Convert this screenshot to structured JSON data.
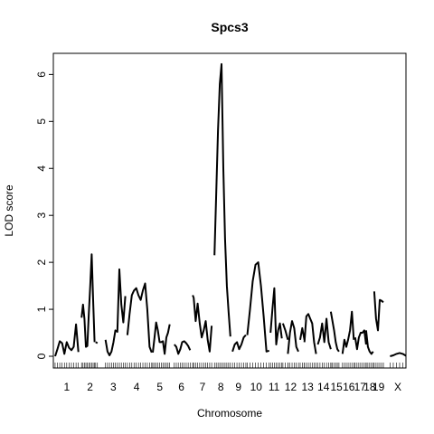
{
  "chart_data": {
    "type": "line",
    "title": "Spcs3",
    "xlabel": "Chromosome",
    "ylabel": "LOD score",
    "ylim": [
      -0.25,
      6.45
    ],
    "yticks": [
      0,
      1,
      2,
      3,
      4,
      5,
      6
    ],
    "xlim": [
      0,
      1.0
    ],
    "grid": false,
    "chromosomes": [
      {
        "label": "1",
        "range": [
          0.005,
          0.071
        ],
        "lod": [
          0.0,
          0.15,
          0.32,
          0.28,
          0.05,
          0.3,
          0.18,
          0.13,
          0.2,
          0.68,
          0.09
        ]
      },
      {
        "label": "",
        "range": [
          0.08,
          0.117
        ],
        "lod": [
          0.82,
          1.1,
          0.8,
          0.2,
          0.22,
          0.9,
          1.5,
          2.17,
          1.2,
          0.3
        ]
      },
      {
        "label": "2",
        "range": [
          0.12,
          0.125
        ],
        "lod": [
          0.3,
          0.28
        ]
      },
      {
        "label": "3",
        "range": [
          0.148,
          0.204
        ],
        "lod": [
          0.35,
          0.1,
          0.02,
          0.1,
          0.3,
          0.55,
          0.52,
          1.85,
          1.1,
          0.72,
          1.28
        ]
      },
      {
        "label": "4",
        "range": [
          0.21,
          0.279
        ],
        "lod": [
          0.45,
          0.9,
          1.3,
          1.4,
          1.45,
          1.3,
          1.2,
          1.4,
          1.55,
          1.0,
          0.2,
          0.08
        ]
      },
      {
        "label": "5",
        "range": [
          0.282,
          0.33
        ],
        "lod": [
          0.08,
          0.4,
          0.72,
          0.55,
          0.3,
          0.3,
          0.32,
          0.05,
          0.4,
          0.5,
          0.68
        ]
      },
      {
        "label": "6",
        "range": [
          0.343,
          0.388
        ],
        "lod": [
          0.25,
          0.2,
          0.05,
          0.15,
          0.3,
          0.32,
          0.28,
          0.22,
          0.13
        ]
      },
      {
        "label": "",
        "range": [
          0.395,
          0.398
        ],
        "lod": [
          1.3,
          1.25
        ]
      },
      {
        "label": "7",
        "range": [
          0.398,
          0.449
        ],
        "lod": [
          1.25,
          0.75,
          1.12,
          0.7,
          0.4,
          0.55,
          0.75,
          0.35,
          0.1,
          0.65
        ]
      },
      {
        "label": "8",
        "range": [
          0.457,
          0.502
        ],
        "lod": [
          2.15,
          3.5,
          4.8,
          5.8,
          6.22,
          4.0,
          2.5,
          1.5,
          0.95,
          0.42
        ]
      },
      {
        "label": "9",
        "range": [
          0.508,
          0.546
        ],
        "lod": [
          0.1,
          0.25,
          0.3,
          0.15,
          0.25,
          0.4,
          0.45
        ]
      },
      {
        "label": "10",
        "range": [
          0.55,
          0.612
        ],
        "lod": [
          0.45,
          1.0,
          1.6,
          1.95,
          2.0,
          1.5,
          0.85,
          0.1,
          0.12
        ]
      },
      {
        "label": "11",
        "range": [
          0.616,
          0.648
        ],
        "lod": [
          0.5,
          1.0,
          1.45,
          0.25,
          0.55,
          0.7,
          0.38
        ]
      },
      {
        "label": "",
        "range": [
          0.651,
          0.665
        ],
        "lod": [
          0.7,
          0.55,
          0.35
        ]
      },
      {
        "label": "12",
        "range": [
          0.665,
          0.695
        ],
        "lod": [
          0.05,
          0.5,
          0.75,
          0.6,
          0.2,
          0.1
        ]
      },
      {
        "label": "",
        "range": [
          0.7,
          0.712
        ],
        "lod": [
          0.35,
          0.6,
          0.35
        ]
      },
      {
        "label": "13",
        "range": [
          0.712,
          0.745
        ],
        "lod": [
          0.3,
          0.85,
          0.9,
          0.8,
          0.7,
          0.3,
          0.05
        ]
      },
      {
        "label": "14",
        "range": [
          0.75,
          0.787
        ],
        "lod": [
          0.25,
          0.4,
          0.7,
          0.3,
          0.8,
          0.3,
          0.15
        ]
      },
      {
        "label": "15",
        "range": [
          0.787,
          0.81
        ],
        "lod": [
          0.95,
          0.75,
          0.55,
          0.3,
          0.15,
          0.1
        ]
      },
      {
        "label": "16",
        "range": [
          0.82,
          0.852
        ],
        "lod": [
          0.05,
          0.35,
          0.2,
          0.35,
          0.55,
          0.95,
          0.35
        ]
      },
      {
        "label": "17",
        "range": [
          0.856,
          0.887
        ],
        "lod": [
          0.4,
          0.15,
          0.4,
          0.5,
          0.5,
          0.55,
          0.25
        ]
      },
      {
        "label": "18",
        "range": [
          0.887,
          0.907
        ],
        "lod": [
          0.55,
          0.2,
          0.1,
          0.05,
          0.1
        ]
      },
      {
        "label": "19",
        "range": [
          0.91,
          0.936
        ],
        "lod": [
          1.38,
          0.8,
          0.55,
          1.2,
          1.18,
          1.15
        ]
      },
      {
        "label": "X",
        "range": [
          0.955,
          1.0
        ],
        "lod": [
          0.0,
          0.02,
          0.05,
          0.07,
          0.05,
          0.01
        ]
      }
    ],
    "xticks": [
      {
        "label": "1",
        "x": 0.038
      },
      {
        "label": "2",
        "x": 0.104
      },
      {
        "label": "3",
        "x": 0.17
      },
      {
        "label": "4",
        "x": 0.236
      },
      {
        "label": "5",
        "x": 0.302
      },
      {
        "label": "6",
        "x": 0.363
      },
      {
        "label": "7",
        "x": 0.423
      },
      {
        "label": "8",
        "x": 0.475
      },
      {
        "label": "9",
        "x": 0.525
      },
      {
        "label": "10",
        "x": 0.575
      },
      {
        "label": "11",
        "x": 0.626
      },
      {
        "label": "12",
        "x": 0.673
      },
      {
        "label": "13",
        "x": 0.721
      },
      {
        "label": "14",
        "x": 0.766
      },
      {
        "label": "15",
        "x": 0.803
      },
      {
        "label": "16",
        "x": 0.838
      },
      {
        "label": "17",
        "x": 0.87
      },
      {
        "label": "18",
        "x": 0.897
      },
      {
        "label": "19",
        "x": 0.922
      },
      {
        "label": "X",
        "x": 0.977
      }
    ]
  }
}
